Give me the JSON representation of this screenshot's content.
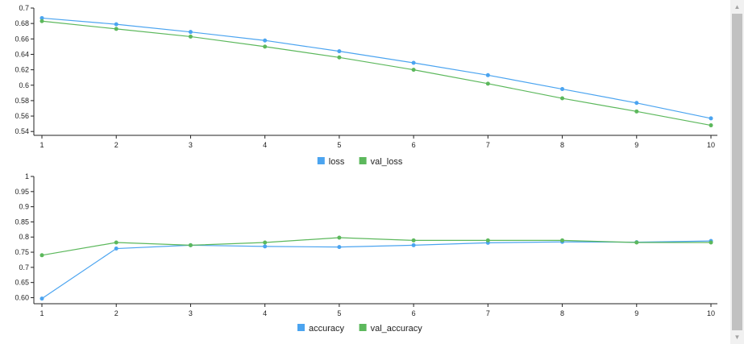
{
  "colors": {
    "series1": "#4ba4f0",
    "series2": "#5cb85c",
    "axis": "#222222"
  },
  "chart_data": [
    {
      "type": "line",
      "x": [
        1,
        2,
        3,
        4,
        5,
        6,
        7,
        8,
        9,
        10
      ],
      "series": [
        {
          "name": "loss",
          "values": [
            0.687,
            0.679,
            0.669,
            0.658,
            0.644,
            0.629,
            0.613,
            0.595,
            0.577,
            0.557
          ]
        },
        {
          "name": "val_loss",
          "values": [
            0.683,
            0.673,
            0.663,
            0.65,
            0.636,
            0.62,
            0.602,
            0.583,
            0.566,
            0.548
          ]
        }
      ],
      "yticks": [
        "0.7",
        "0.68",
        "0.66",
        "0.64",
        "0.62",
        "0.6",
        "0.58",
        "0.56",
        "0.54"
      ],
      "xticks": [
        "1",
        "2",
        "3",
        "4",
        "5",
        "6",
        "7",
        "8",
        "9",
        "10"
      ],
      "ylim": [
        0.535,
        0.7
      ],
      "xlim": [
        1,
        10
      ],
      "grid": false,
      "legend": "bottom-center"
    },
    {
      "type": "line",
      "x": [
        1,
        2,
        3,
        4,
        5,
        6,
        7,
        8,
        9,
        10
      ],
      "series": [
        {
          "name": "accuracy",
          "values": [
            0.597,
            0.762,
            0.773,
            0.769,
            0.767,
            0.773,
            0.781,
            0.784,
            0.783,
            0.787
          ]
        },
        {
          "name": "val_accuracy",
          "values": [
            0.74,
            0.782,
            0.773,
            0.782,
            0.798,
            0.789,
            0.789,
            0.789,
            0.782,
            0.782
          ]
        }
      ],
      "yticks": [
        "1",
        "0.95",
        "0.9",
        "0.85",
        "0.8",
        "0.75",
        "0.7",
        "0.65",
        "0.60"
      ],
      "xticks": [
        "1",
        "2",
        "3",
        "4",
        "5",
        "6",
        "7",
        "8",
        "9",
        "10"
      ],
      "ylim": [
        0.58,
        1.0
      ],
      "xlim": [
        1,
        10
      ],
      "grid": false,
      "legend": "bottom-center"
    }
  ]
}
